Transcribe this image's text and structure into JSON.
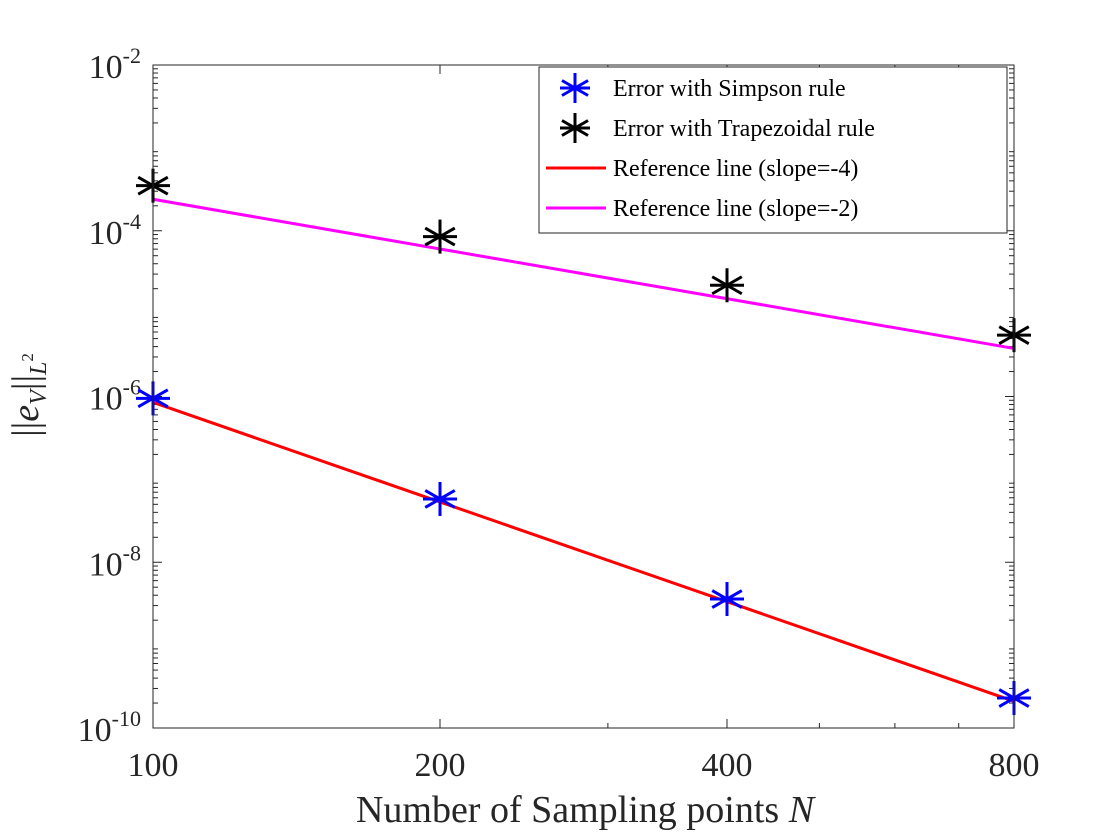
{
  "chart_data": {
    "type": "line",
    "xscale": "log",
    "yscale": "log",
    "xlim": [
      100,
      800
    ],
    "ylim": [
      1e-10,
      0.01
    ],
    "xticks": [
      100,
      200,
      400,
      800
    ],
    "xtick_labels": [
      "100",
      "200",
      "400",
      "800"
    ],
    "yticks": [
      1e-10,
      1e-08,
      1e-06,
      0.0001,
      0.01
    ],
    "ytick_labels": [
      {
        "base": "10",
        "exp": "-10"
      },
      {
        "base": "10",
        "exp": "-8"
      },
      {
        "base": "10",
        "exp": "-6"
      },
      {
        "base": "10",
        "exp": "-4"
      },
      {
        "base": "10",
        "exp": "-2"
      }
    ],
    "xlabel": {
      "text": "Number of Sampling points ",
      "var": "N"
    },
    "ylabel": {
      "left": "||",
      "var": "e",
      "sub": "V",
      "right": "||",
      "norm": "L",
      "norm_exp": "2"
    },
    "legend_position": "top-right",
    "series": [
      {
        "name": "Error with Simpson rule",
        "style": "marker",
        "marker": "asterisk",
        "color": "#0000ff",
        "x": [
          100,
          200,
          400,
          800
        ],
        "y": [
          9.5e-07,
          5.8e-08,
          3.6e-09,
          2.3e-10
        ]
      },
      {
        "name": "Error with Trapezoidal rule",
        "style": "marker",
        "marker": "asterisk",
        "color": "#000000",
        "x": [
          100,
          200,
          400,
          800
        ],
        "y": [
          0.00035,
          8.5e-05,
          2.2e-05,
          5.5e-06
        ]
      },
      {
        "name": "Reference line (slope=-4)",
        "style": "line",
        "color": "#ff0000",
        "x": [
          100,
          800
        ],
        "y": [
          8.5e-07,
          2.1e-10
        ]
      },
      {
        "name": "Reference line (slope=-2)",
        "style": "line",
        "color": "#ff00ff",
        "x": [
          100,
          800
        ],
        "y": [
          0.00024,
          3.8e-06
        ]
      }
    ]
  }
}
